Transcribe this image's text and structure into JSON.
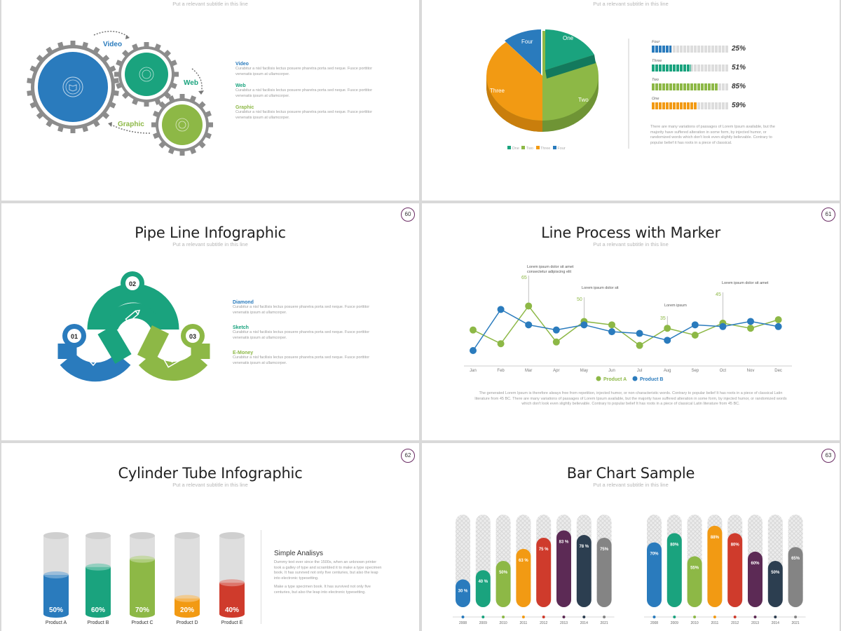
{
  "subtitle": "Put a relevant subtitle in this line",
  "slide_gears": {
    "labels": {
      "video": "Video",
      "web": "Web",
      "graphic": "Graphic"
    },
    "items": [
      {
        "title": "Video",
        "color": "#2a7bbd",
        "text1": "Curabitur a nisl facilisis lectus posuere pharetra porta sed neque. Fusce porttitor",
        "text2": "venenatis ipsum at ullamcorper."
      },
      {
        "title": "Web",
        "color": "#1aa37e",
        "text1": "Curabitur a nisl facilisis lectus posuere pharetra porta sed neque. Fusce porttitor",
        "text2": "venenatis ipsum at ullamcorper."
      },
      {
        "title": "Graphic",
        "color": "#8db846",
        "text1": "Curabitur a nisl facilisis lectus posuere pharetra porta sed neque. Fusce porttitor",
        "text2": "venenatis ipsum at ullamcorper."
      }
    ]
  },
  "slide_pie": {
    "slices": {
      "one": "One",
      "two": "Two",
      "three": "Three",
      "four": "Four"
    },
    "legend": [
      "One",
      "Two",
      "Three",
      "Four"
    ],
    "bars": [
      {
        "label": "Four",
        "pct": "25%",
        "value": 25,
        "color": "#2a7bbd"
      },
      {
        "label": "Three",
        "pct": "51%",
        "value": 51,
        "color": "#1aa37e"
      },
      {
        "label": "Two",
        "pct": "85%",
        "value": 85,
        "color": "#8db846"
      },
      {
        "label": "One",
        "pct": "59%",
        "value": 59,
        "color": "#f29a13"
      }
    ],
    "para": [
      "There are many variations of passages of Lorem Ipsum available, but the",
      "majority have suffered alteration in some form, by injected humor, or",
      "randomized words which don't look even slightly believable. Contrary to",
      "popular belief it has roots in a piece of classical."
    ]
  },
  "slide_pipe": {
    "title": "Pipe Line Infographic",
    "page": "60",
    "badges": [
      "01",
      "02",
      "03"
    ],
    "items": [
      {
        "title": "Diamond",
        "color": "#2a7bbd",
        "text1": "Curabitur a nisl facilisis lectus posuere pharetra porta sed neque. Fusce porttitor",
        "text2": "venenatis ipsum at ullamcorper."
      },
      {
        "title": "Sketch",
        "color": "#1aa37e",
        "text1": "Curabitur a nisl facilisis lectus posuere pharetra porta sed neque. Fusce porttitor",
        "text2": "venenatis ipsum at ullamcorper."
      },
      {
        "title": "E-Money",
        "color": "#8db846",
        "text1": "Curabitur a nisl facilisis lectus posuere pharetra porta sed neque. Fusce porttitor",
        "text2": "venenatis ipsum at ullamcorper."
      }
    ]
  },
  "slide_line": {
    "title": "Line Process with Marker",
    "page": "61",
    "annotations": {
      "a1": "Lorem ipsum dolor sit amet",
      "a1b": "consectetur adipiscing elit",
      "a2": "Lorem ipsum dolor sit",
      "a3": "Lorem ipsum",
      "a4": "Lorem ipsum dolor sit amet",
      "v1": "65",
      "v2": "50",
      "v3": "35",
      "v4": "45"
    },
    "para": [
      "The generated Lorem Ipsum is therefore always free from repetition, injected humor, or non-characteristic words. Contrary to popular belief It has roots in a piece of classical Latin",
      "literature from 45 BC. There are many variations of passages of Lorem Ipsum available, but the majority have suffered alteration in some form, by injected humor, or randomized words",
      "which don't look even slightly believable. Contrary to popular belief It has roots in a piece of classical Latin literature from 45 BC."
    ]
  },
  "slide_cyl": {
    "title": "Cylinder Tube Infographic",
    "page": "62",
    "heading": "Simple Analisys",
    "para1": [
      "Dummy text ever since the 1500s, when an unknown printer",
      "took a galley of type and scrambled it to make a type specimen",
      "book. It has survived not only five centuries, but also the leap",
      "into electronic typesetting."
    ],
    "para2": [
      "Make a type specimen book. It has survived not only five",
      "centuries, but also the leap into electronic typesetting."
    ],
    "tubes": [
      {
        "label": "Product A",
        "pct": "50%",
        "value": 50,
        "color": "#2a7bbd"
      },
      {
        "label": "Product B",
        "pct": "60%",
        "value": 60,
        "color": "#1aa37e"
      },
      {
        "label": "Product C",
        "pct": "70%",
        "value": 70,
        "color": "#8db846"
      },
      {
        "label": "Product D",
        "pct": "20%",
        "value": 20,
        "color": "#f29a13"
      },
      {
        "label": "Product E",
        "pct": "40%",
        "value": 40,
        "color": "#cf3b2c"
      }
    ]
  },
  "slide_bars": {
    "title": "Bar Chart Sample",
    "page": "63"
  },
  "chart_data": [
    {
      "type": "line",
      "categories": [
        "Jan",
        "Feb",
        "Mar",
        "Apr",
        "May",
        "Jun",
        "Jul",
        "Aug",
        "Sep",
        "Oct",
        "Nov",
        "Dec"
      ],
      "series": [
        {
          "name": "Product A",
          "color": "#8db846",
          "values": [
            31,
            23,
            45,
            24,
            36,
            34,
            22,
            32,
            28,
            35,
            32,
            37
          ]
        },
        {
          "name": "Product B",
          "color": "#2a7bbd",
          "values": [
            19,
            43,
            34,
            31,
            34,
            30,
            29,
            25,
            34,
            33,
            36,
            33
          ]
        }
      ]
    },
    {
      "type": "bar",
      "categories": [
        "2008",
        "2009",
        "2010",
        "2011",
        "2012",
        "2013",
        "2014",
        "2021"
      ],
      "values": [
        30,
        40,
        50,
        63,
        75,
        83,
        78,
        75
      ],
      "labels": [
        "30 %",
        "40 %",
        "50%",
        "63 %",
        "75 %",
        "83 %",
        "78 %",
        "75%"
      ],
      "colors": [
        "#2a7bbd",
        "#1aa37e",
        "#8db846",
        "#f29a13",
        "#cf3b2c",
        "#5c2a55",
        "#2c3e50",
        "#848484"
      ]
    },
    {
      "type": "bar",
      "categories": [
        "2008",
        "2009",
        "2010",
        "2011",
        "2012",
        "2013",
        "2014",
        "2021"
      ],
      "values": [
        70,
        80,
        55,
        88,
        80,
        60,
        50,
        65
      ],
      "labels": [
        "70%",
        "80%",
        "55%",
        "88%",
        "80%",
        "60%",
        "50%",
        "65%"
      ],
      "colors": [
        "#2a7bbd",
        "#1aa37e",
        "#8db846",
        "#f29a13",
        "#cf3b2c",
        "#5c2a55",
        "#2c3e50",
        "#848484"
      ]
    }
  ]
}
